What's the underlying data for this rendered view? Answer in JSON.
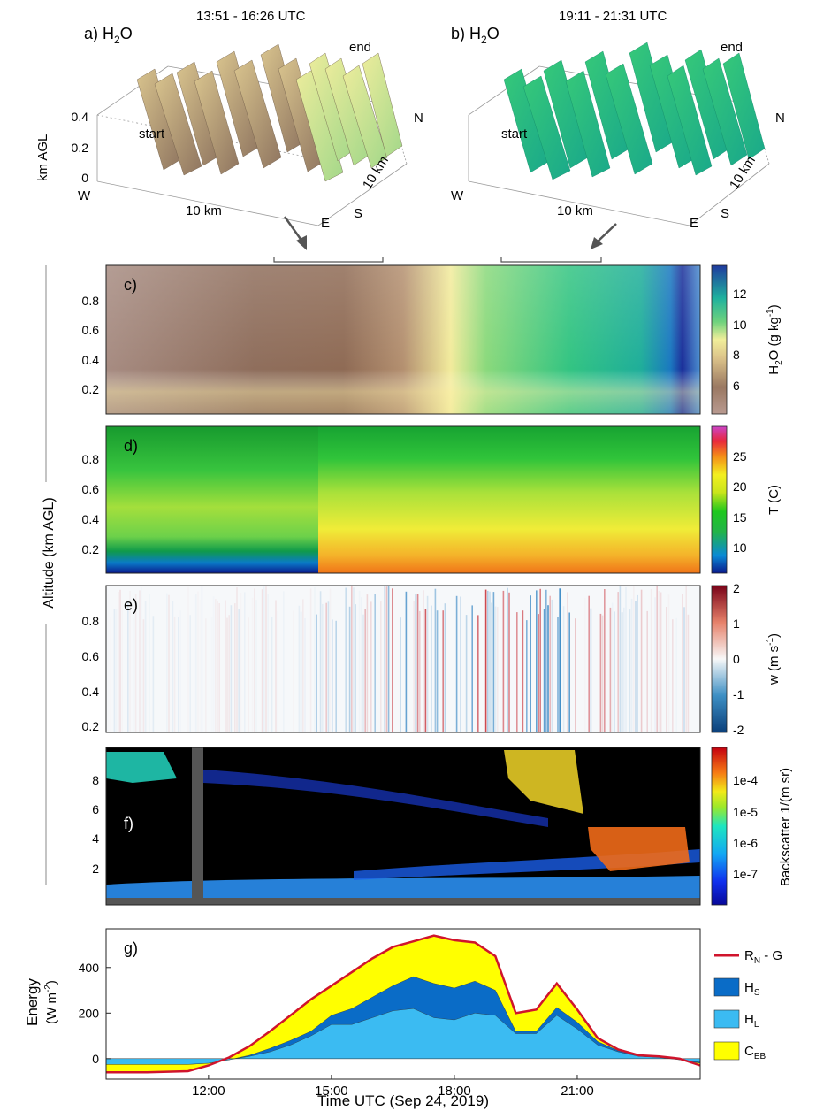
{
  "figure": {
    "ylabel_shared": "Altitude (km AGL)"
  },
  "panel_a": {
    "label": "a) H",
    "label_sub": "2",
    "label_tail": "O",
    "time": "13:51 - 16:26 UTC",
    "end_label": "end",
    "start_label": "start",
    "zlabel": "km AGL",
    "zticks": [
      "0.4",
      "0.2",
      "0"
    ],
    "x_axis_w": "W",
    "x_axis_e": "E",
    "x_scale": "10 km",
    "y_axis_n": "N",
    "y_axis_s": "S",
    "y_scale": "10 km"
  },
  "panel_b": {
    "label": "b) H",
    "label_sub": "2",
    "label_tail": "O",
    "time": "19:11 - 21:31 UTC",
    "end_label": "end",
    "start_label": "start",
    "x_axis_w": "W",
    "x_axis_e": "E",
    "x_scale": "10 km",
    "y_axis_n": "N",
    "y_axis_s": "S",
    "y_scale": "10 km"
  },
  "panel_c": {
    "label": "c)",
    "yticks": [
      "0.8",
      "0.6",
      "0.4",
      "0.2"
    ],
    "cbar_ticks": [
      "12",
      "10",
      "8",
      "6"
    ],
    "cbar_label": "H2O (g kg-1)"
  },
  "panel_d": {
    "label": "d)",
    "yticks": [
      "0.8",
      "0.6",
      "0.4",
      "0.2"
    ],
    "cbar_ticks": [
      "25",
      "20",
      "15",
      "10"
    ],
    "cbar_label": "T (C)"
  },
  "panel_e": {
    "label": "e)",
    "yticks": [
      "0.8",
      "0.6",
      "0.4",
      "0.2"
    ],
    "cbar_ticks": [
      "2",
      "1",
      "0",
      "-1",
      "-2"
    ],
    "cbar_label": "w (m s-1)"
  },
  "panel_f": {
    "label": "f)",
    "yticks": [
      "8",
      "6",
      "4",
      "2"
    ],
    "cbar_ticks": [
      "1e-4",
      "1e-5",
      "1e-6",
      "1e-7"
    ],
    "cbar_label": "Backscatter 1/(m sr)"
  },
  "panel_g": {
    "label": "g)",
    "ylabel_line1": "Energy",
    "ylabel_line2": "(W m-2)",
    "yticks": [
      "400",
      "200",
      "0"
    ],
    "xticks": [
      "12:00",
      "15:00",
      "18:00",
      "21:00"
    ],
    "xlabel": "Time UTC (Sep 24, 2019)",
    "legend": [
      "RN - G",
      "HS",
      "HL",
      "CEB"
    ]
  },
  "colors": {
    "rn_g": "#d0142c",
    "hs": "#0a6cc7",
    "hl": "#3bbbf2",
    "ceb": "#ffff00"
  },
  "chart_data": {
    "type": "area",
    "title": "",
    "xlabel": "Time UTC (Sep 24, 2019)",
    "ylabel": "Energy (W m-2)",
    "ylim": [
      -90,
      570
    ],
    "x": [
      "09:30",
      "10:30",
      "11:30",
      "12:00",
      "12:30",
      "13:00",
      "13:30",
      "14:00",
      "14:30",
      "15:00",
      "15:30",
      "16:00",
      "16:30",
      "17:00",
      "17:30",
      "18:00",
      "18:30",
      "19:00",
      "19:30",
      "20:00",
      "20:30",
      "21:00",
      "21:30",
      "22:00",
      "22:30",
      "23:00",
      "23:30",
      "24:00"
    ],
    "series": [
      {
        "name": "RN - G",
        "values": [
          -60,
          -60,
          -55,
          -30,
          5,
          55,
          120,
          190,
          260,
          320,
          380,
          440,
          490,
          515,
          540,
          520,
          510,
          450,
          200,
          215,
          330,
          215,
          90,
          40,
          15,
          10,
          0,
          -30
        ]
      },
      {
        "name": "HS",
        "values": [
          -25,
          -25,
          -25,
          -20,
          -5,
          15,
          45,
          80,
          120,
          190,
          220,
          270,
          320,
          360,
          330,
          310,
          340,
          300,
          120,
          120,
          225,
          160,
          75,
          35,
          15,
          10,
          -5,
          -20
        ]
      },
      {
        "name": "HL",
        "values": [
          -25,
          -25,
          -25,
          -20,
          -5,
          10,
          30,
          60,
          100,
          150,
          150,
          180,
          210,
          220,
          180,
          170,
          200,
          190,
          110,
          110,
          190,
          130,
          60,
          30,
          10,
          5,
          -5,
          -15
        ]
      },
      {
        "name": "CEB",
        "values": [
          -60,
          -60,
          -55,
          -30,
          5,
          55,
          120,
          190,
          260,
          320,
          380,
          440,
          490,
          515,
          540,
          520,
          510,
          450,
          200,
          215,
          330,
          215,
          90,
          40,
          15,
          10,
          0,
          -30
        ]
      }
    ],
    "grid": false,
    "legend_position": "right"
  }
}
